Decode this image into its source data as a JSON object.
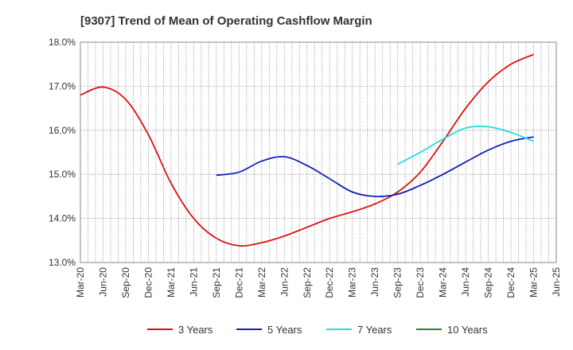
{
  "chart_data": {
    "type": "line",
    "title": "[9307]  Trend of Mean of Operating Cashflow Margin",
    "xlabel": "",
    "ylabel": "",
    "x_ticks": [
      "Mar-20",
      "Jun-20",
      "Sep-20",
      "Dec-20",
      "Mar-21",
      "Jun-21",
      "Sep-21",
      "Dec-21",
      "Mar-22",
      "Jun-22",
      "Sep-22",
      "Dec-22",
      "Mar-23",
      "Jun-23",
      "Sep-23",
      "Dec-23",
      "Mar-24",
      "Jun-24",
      "Sep-24",
      "Dec-24",
      "Mar-25",
      "Jun-25"
    ],
    "y_ticks": [
      "13.0%",
      "14.0%",
      "15.0%",
      "16.0%",
      "17.0%",
      "18.0%"
    ],
    "ylim": [
      13.0,
      18.0
    ],
    "grid": true,
    "legend_position": "bottom",
    "series": [
      {
        "name": "3 Years",
        "color": "#dd1111",
        "x": [
          "Mar-20",
          "Jun-20",
          "Sep-20",
          "Dec-20",
          "Mar-21",
          "Jun-21",
          "Sep-21",
          "Dec-21",
          "Mar-22",
          "Jun-22",
          "Sep-22",
          "Dec-22",
          "Mar-23",
          "Jun-23",
          "Sep-23",
          "Dec-23",
          "Mar-24",
          "Jun-24",
          "Sep-24",
          "Dec-24",
          "Mar-25"
        ],
        "values": [
          16.8,
          16.98,
          16.7,
          15.9,
          14.8,
          14.0,
          13.55,
          13.38,
          13.45,
          13.6,
          13.8,
          14.0,
          14.15,
          14.33,
          14.6,
          15.05,
          15.75,
          16.5,
          17.1,
          17.5,
          17.72
        ]
      },
      {
        "name": "5 Years",
        "color": "#1122bb",
        "x": [
          "Sep-21",
          "Dec-21",
          "Mar-22",
          "Jun-22",
          "Sep-22",
          "Dec-22",
          "Mar-23",
          "Jun-23",
          "Sep-23",
          "Dec-23",
          "Mar-24",
          "Jun-24",
          "Sep-24",
          "Dec-24",
          "Mar-25"
        ],
        "values": [
          14.98,
          15.05,
          15.3,
          15.4,
          15.2,
          14.9,
          14.6,
          14.5,
          14.55,
          14.75,
          15.0,
          15.28,
          15.55,
          15.75,
          15.85
        ]
      },
      {
        "name": "7 Years",
        "color": "#22dddd",
        "x": [
          "Sep-23",
          "Dec-23",
          "Mar-24",
          "Jun-24",
          "Sep-24",
          "Dec-24",
          "Mar-25"
        ],
        "values": [
          15.23,
          15.5,
          15.8,
          16.05,
          16.08,
          15.95,
          15.75
        ]
      },
      {
        "name": "10 Years",
        "color": "#228822",
        "x": [],
        "values": []
      }
    ]
  }
}
